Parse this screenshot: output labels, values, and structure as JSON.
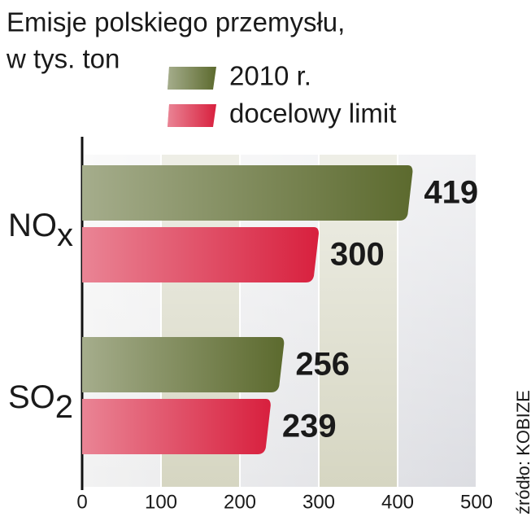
{
  "chart_data": {
    "type": "bar",
    "orientation": "horizontal",
    "title": [
      "Emisje polskiego przemysłu,",
      "w tys. ton"
    ],
    "categories": [
      "NOx",
      "SO2"
    ],
    "series": [
      {
        "name": "2010 r.",
        "color": "#5c6a2e",
        "values": [
          419,
          256
        ]
      },
      {
        "name": "docelowy limit",
        "color": "#d8203e",
        "values": [
          300,
          239
        ]
      }
    ],
    "xlim": [
      0,
      500
    ],
    "xticks": [
      0,
      100,
      200,
      300,
      400,
      500
    ],
    "grid": true,
    "source": "źródło: KOBIZE"
  }
}
